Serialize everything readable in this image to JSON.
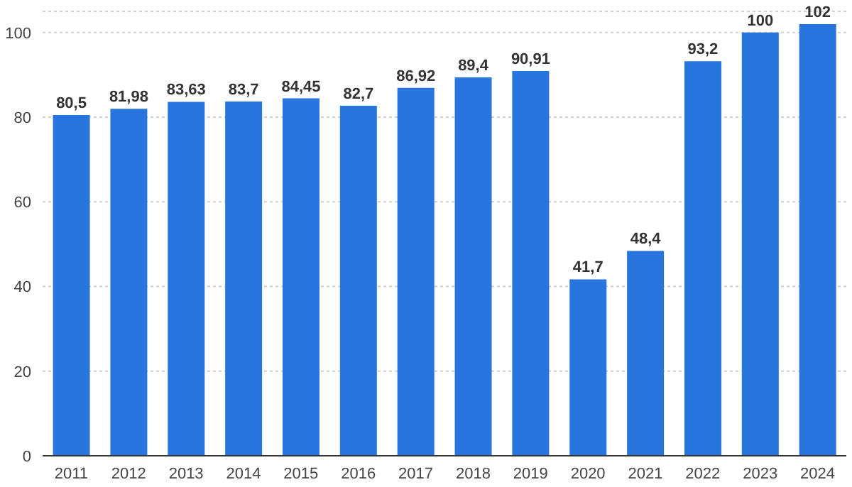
{
  "chart_data": {
    "type": "bar",
    "categories": [
      "2011",
      "2012",
      "2013",
      "2014",
      "2015",
      "2016",
      "2017",
      "2018",
      "2019",
      "2020",
      "2021",
      "2022",
      "2023",
      "2024"
    ],
    "values": [
      80.5,
      81.98,
      83.63,
      83.7,
      84.45,
      82.7,
      86.92,
      89.4,
      90.91,
      41.7,
      48.4,
      93.2,
      100,
      102
    ],
    "value_labels": [
      "80,5",
      "81,98",
      "83,63",
      "83,7",
      "84,45",
      "82,7",
      "86,92",
      "89,4",
      "90,91",
      "41,7",
      "48,4",
      "93,2",
      "100",
      "102"
    ],
    "color": "#2876dd",
    "ylim": [
      0,
      105
    ],
    "yticks": [
      0,
      20,
      40,
      60,
      80,
      100
    ],
    "grid": "y"
  }
}
